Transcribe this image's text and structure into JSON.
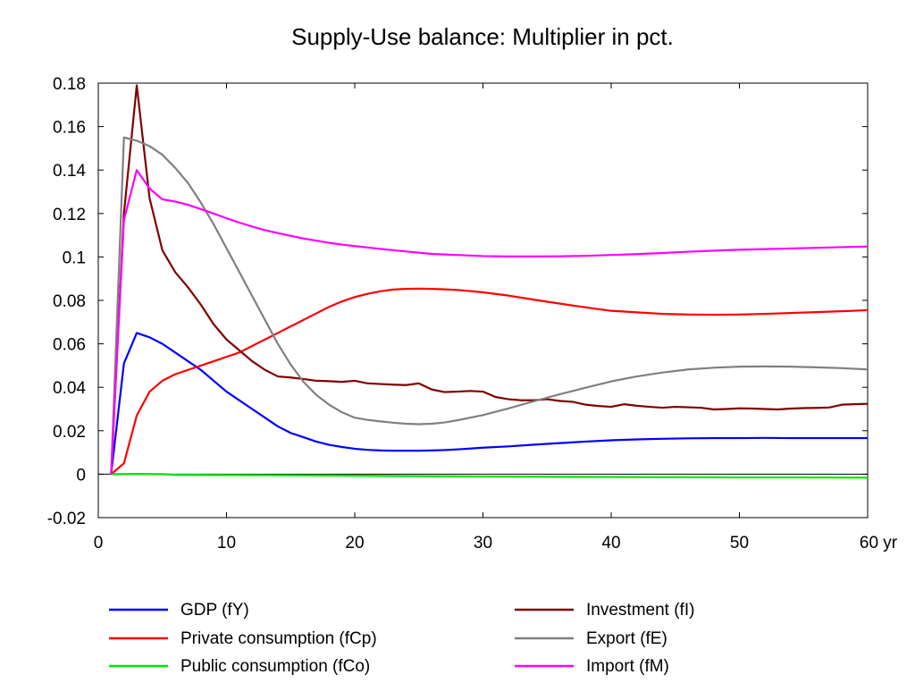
{
  "chart_data": {
    "type": "line",
    "title": "Supply-Use balance: Multiplier in pct.",
    "xlabel": "",
    "ylabel": "",
    "xlim": [
      0,
      60
    ],
    "ylim": [
      -0.02,
      0.18
    ],
    "x_ticks": [
      0,
      10,
      20,
      30,
      40,
      50,
      60
    ],
    "x_tick_labels": [
      "0",
      "10",
      "20",
      "30",
      "40",
      "50",
      "60 yr"
    ],
    "y_ticks": [
      -0.02,
      0,
      0.02,
      0.04,
      0.06,
      0.08,
      0.1,
      0.12,
      0.14,
      0.16,
      0.18
    ],
    "y_tick_labels": [
      "-0.02",
      "0",
      "0.02",
      "0.04",
      "0.06",
      "0.08",
      "0.1",
      "0.12",
      "0.14",
      "0.16",
      "0.18"
    ],
    "grid": false,
    "zero_line": true,
    "legend_position": "bottom",
    "series": [
      {
        "name": "GDP (fY)",
        "color": "#0000ff",
        "points": [
          [
            1,
            0
          ],
          [
            2,
            0.051
          ],
          [
            3,
            0.065
          ],
          [
            4,
            0.063
          ],
          [
            5,
            0.06
          ],
          [
            6,
            0.056
          ],
          [
            7,
            0.052
          ],
          [
            8,
            0.048
          ],
          [
            9,
            0.043
          ],
          [
            10,
            0.038
          ],
          [
            11,
            0.034
          ],
          [
            12,
            0.03
          ],
          [
            13,
            0.026
          ],
          [
            14,
            0.022
          ],
          [
            15,
            0.019
          ],
          [
            16,
            0.017
          ],
          [
            17,
            0.015
          ],
          [
            18,
            0.0135
          ],
          [
            19,
            0.0125
          ],
          [
            20,
            0.0117
          ],
          [
            21,
            0.0112
          ],
          [
            22,
            0.0109
          ],
          [
            23,
            0.0108
          ],
          [
            24,
            0.0108
          ],
          [
            25,
            0.0108
          ],
          [
            26,
            0.0109
          ],
          [
            27,
            0.0111
          ],
          [
            28,
            0.0114
          ],
          [
            29,
            0.0118
          ],
          [
            30,
            0.0122
          ],
          [
            32,
            0.0128
          ],
          [
            34,
            0.0136
          ],
          [
            36,
            0.0143
          ],
          [
            38,
            0.015
          ],
          [
            40,
            0.0156
          ],
          [
            42,
            0.016
          ],
          [
            44,
            0.0163
          ],
          [
            46,
            0.0165
          ],
          [
            48,
            0.0166
          ],
          [
            50,
            0.0166
          ],
          [
            52,
            0.0167
          ],
          [
            54,
            0.0166
          ],
          [
            56,
            0.0166
          ],
          [
            58,
            0.0166
          ],
          [
            60,
            0.0166
          ]
        ]
      },
      {
        "name": "Private consumption (fCp)",
        "color": "#ff0000",
        "points": [
          [
            1,
            0
          ],
          [
            2,
            0.005
          ],
          [
            3,
            0.027
          ],
          [
            4,
            0.038
          ],
          [
            5,
            0.043
          ],
          [
            6,
            0.046
          ],
          [
            7,
            0.048
          ],
          [
            8,
            0.05
          ],
          [
            9,
            0.052
          ],
          [
            10,
            0.054
          ],
          [
            11,
            0.056
          ],
          [
            12,
            0.059
          ],
          [
            13,
            0.062
          ],
          [
            14,
            0.065
          ],
          [
            15,
            0.068
          ],
          [
            16,
            0.071
          ],
          [
            17,
            0.074
          ],
          [
            18,
            0.077
          ],
          [
            19,
            0.0795
          ],
          [
            20,
            0.0815
          ],
          [
            21,
            0.083
          ],
          [
            22,
            0.0842
          ],
          [
            23,
            0.085
          ],
          [
            24,
            0.0853
          ],
          [
            25,
            0.0854
          ],
          [
            26,
            0.0853
          ],
          [
            27,
            0.0851
          ],
          [
            28,
            0.0848
          ],
          [
            29,
            0.0843
          ],
          [
            30,
            0.0837
          ],
          [
            32,
            0.0822
          ],
          [
            34,
            0.0803
          ],
          [
            36,
            0.0785
          ],
          [
            38,
            0.0768
          ],
          [
            40,
            0.0752
          ],
          [
            42,
            0.0745
          ],
          [
            44,
            0.0738
          ],
          [
            46,
            0.0735
          ],
          [
            48,
            0.0734
          ],
          [
            50,
            0.0735
          ],
          [
            52,
            0.0738
          ],
          [
            54,
            0.0742
          ],
          [
            56,
            0.0746
          ],
          [
            58,
            0.075
          ],
          [
            60,
            0.0755
          ]
        ]
      },
      {
        "name": "Public consumption (fCo)",
        "color": "#00e600",
        "points": [
          [
            1,
            0
          ],
          [
            3,
            0.0001
          ],
          [
            5,
            0
          ],
          [
            6,
            -0.0003
          ],
          [
            10,
            -0.0004
          ],
          [
            15,
            -0.0005
          ],
          [
            20,
            -0.0007
          ],
          [
            25,
            -0.0009
          ],
          [
            30,
            -0.0011
          ],
          [
            35,
            -0.0012
          ],
          [
            40,
            -0.0013
          ],
          [
            45,
            -0.0014
          ],
          [
            50,
            -0.0015
          ],
          [
            55,
            -0.0015
          ],
          [
            60,
            -0.0016
          ]
        ]
      },
      {
        "name": "Investment (fI)",
        "color": "#800000",
        "points": [
          [
            1,
            0
          ],
          [
            2,
            0.12
          ],
          [
            3,
            0.179
          ],
          [
            4,
            0.127
          ],
          [
            5,
            0.103
          ],
          [
            6,
            0.093
          ],
          [
            7,
            0.086
          ],
          [
            8,
            0.078
          ],
          [
            9,
            0.069
          ],
          [
            10,
            0.062
          ],
          [
            11,
            0.057
          ],
          [
            12,
            0.052
          ],
          [
            13,
            0.048
          ],
          [
            14,
            0.045
          ],
          [
            15,
            0.0445
          ],
          [
            16,
            0.0438
          ],
          [
            17,
            0.043
          ],
          [
            18,
            0.0428
          ],
          [
            19,
            0.0425
          ],
          [
            20,
            0.043
          ],
          [
            21,
            0.0418
          ],
          [
            22,
            0.0415
          ],
          [
            23,
            0.0412
          ],
          [
            24,
            0.041
          ],
          [
            25,
            0.0418
          ],
          [
            26,
            0.039
          ],
          [
            27,
            0.0378
          ],
          [
            28,
            0.038
          ],
          [
            29,
            0.0383
          ],
          [
            30,
            0.038
          ],
          [
            31,
            0.0355
          ],
          [
            32,
            0.0345
          ],
          [
            33,
            0.034
          ],
          [
            34,
            0.034
          ],
          [
            35,
            0.0345
          ],
          [
            36,
            0.0337
          ],
          [
            37,
            0.0333
          ],
          [
            38,
            0.032
          ],
          [
            39,
            0.0314
          ],
          [
            40,
            0.031
          ],
          [
            41,
            0.0322
          ],
          [
            42,
            0.0315
          ],
          [
            43,
            0.031
          ],
          [
            44,
            0.0306
          ],
          [
            45,
            0.031
          ],
          [
            46,
            0.0308
          ],
          [
            47,
            0.0306
          ],
          [
            48,
            0.0298
          ],
          [
            49,
            0.03
          ],
          [
            50,
            0.0303
          ],
          [
            51,
            0.0302
          ],
          [
            52,
            0.03
          ],
          [
            53,
            0.0298
          ],
          [
            54,
            0.0302
          ],
          [
            55,
            0.0304
          ],
          [
            56,
            0.0305
          ],
          [
            57,
            0.0307
          ],
          [
            58,
            0.032
          ],
          [
            59,
            0.0322
          ],
          [
            60,
            0.0324
          ]
        ]
      },
      {
        "name": "Export (fE)",
        "color": "#808080",
        "points": [
          [
            1,
            0
          ],
          [
            2,
            0.155
          ],
          [
            3,
            0.1535
          ],
          [
            4,
            0.151
          ],
          [
            5,
            0.147
          ],
          [
            6,
            0.141
          ],
          [
            7,
            0.134
          ],
          [
            8,
            0.125
          ],
          [
            9,
            0.115
          ],
          [
            10,
            0.104
          ],
          [
            11,
            0.093
          ],
          [
            12,
            0.082
          ],
          [
            13,
            0.071
          ],
          [
            14,
            0.06
          ],
          [
            15,
            0.0505
          ],
          [
            16,
            0.0425
          ],
          [
            17,
            0.0365
          ],
          [
            18,
            0.032
          ],
          [
            19,
            0.0285
          ],
          [
            20,
            0.026
          ],
          [
            21,
            0.025
          ],
          [
            22,
            0.0243
          ],
          [
            23,
            0.0237
          ],
          [
            24,
            0.0232
          ],
          [
            25,
            0.023
          ],
          [
            26,
            0.0232
          ],
          [
            27,
            0.0238
          ],
          [
            28,
            0.0248
          ],
          [
            29,
            0.026
          ],
          [
            30,
            0.0272
          ],
          [
            32,
            0.0303
          ],
          [
            34,
            0.0336
          ],
          [
            36,
            0.0368
          ],
          [
            38,
            0.0398
          ],
          [
            40,
            0.0427
          ],
          [
            42,
            0.045
          ],
          [
            44,
            0.0468
          ],
          [
            46,
            0.0482
          ],
          [
            48,
            0.049
          ],
          [
            50,
            0.0495
          ],
          [
            52,
            0.0496
          ],
          [
            54,
            0.0495
          ],
          [
            56,
            0.0492
          ],
          [
            58,
            0.0488
          ],
          [
            60,
            0.0482
          ]
        ]
      },
      {
        "name": "Import (fM)",
        "color": "#ff00ff",
        "points": [
          [
            1,
            0
          ],
          [
            2,
            0.117
          ],
          [
            3,
            0.14
          ],
          [
            4,
            0.1315
          ],
          [
            5,
            0.1265
          ],
          [
            6,
            0.1255
          ],
          [
            7,
            0.124
          ],
          [
            8,
            0.122
          ],
          [
            9,
            0.12
          ],
          [
            10,
            0.1178
          ],
          [
            11,
            0.1158
          ],
          [
            12,
            0.114
          ],
          [
            13,
            0.1123
          ],
          [
            14,
            0.111
          ],
          [
            15,
            0.1097
          ],
          [
            16,
            0.1085
          ],
          [
            17,
            0.1075
          ],
          [
            18,
            0.1065
          ],
          [
            19,
            0.1057
          ],
          [
            20,
            0.105
          ],
          [
            22,
            0.1037
          ],
          [
            24,
            0.1025
          ],
          [
            26,
            0.1014
          ],
          [
            28,
            0.1009
          ],
          [
            30,
            0.1004
          ],
          [
            32,
            0.1002
          ],
          [
            34,
            0.1002
          ],
          [
            36,
            0.1003
          ],
          [
            38,
            0.1005
          ],
          [
            40,
            0.1009
          ],
          [
            42,
            0.1013
          ],
          [
            44,
            0.1018
          ],
          [
            46,
            0.1024
          ],
          [
            48,
            0.1029
          ],
          [
            50,
            0.1033
          ],
          [
            52,
            0.1036
          ],
          [
            54,
            0.1039
          ],
          [
            56,
            0.1042
          ],
          [
            58,
            0.1045
          ],
          [
            60,
            0.1048
          ]
        ]
      }
    ],
    "legend_columns": [
      [
        "GDP (fY)",
        "Private consumption (fCp)",
        "Public consumption (fCo)"
      ],
      [
        "Investment (fI)",
        "Export (fE)",
        "Import (fM)"
      ]
    ]
  }
}
